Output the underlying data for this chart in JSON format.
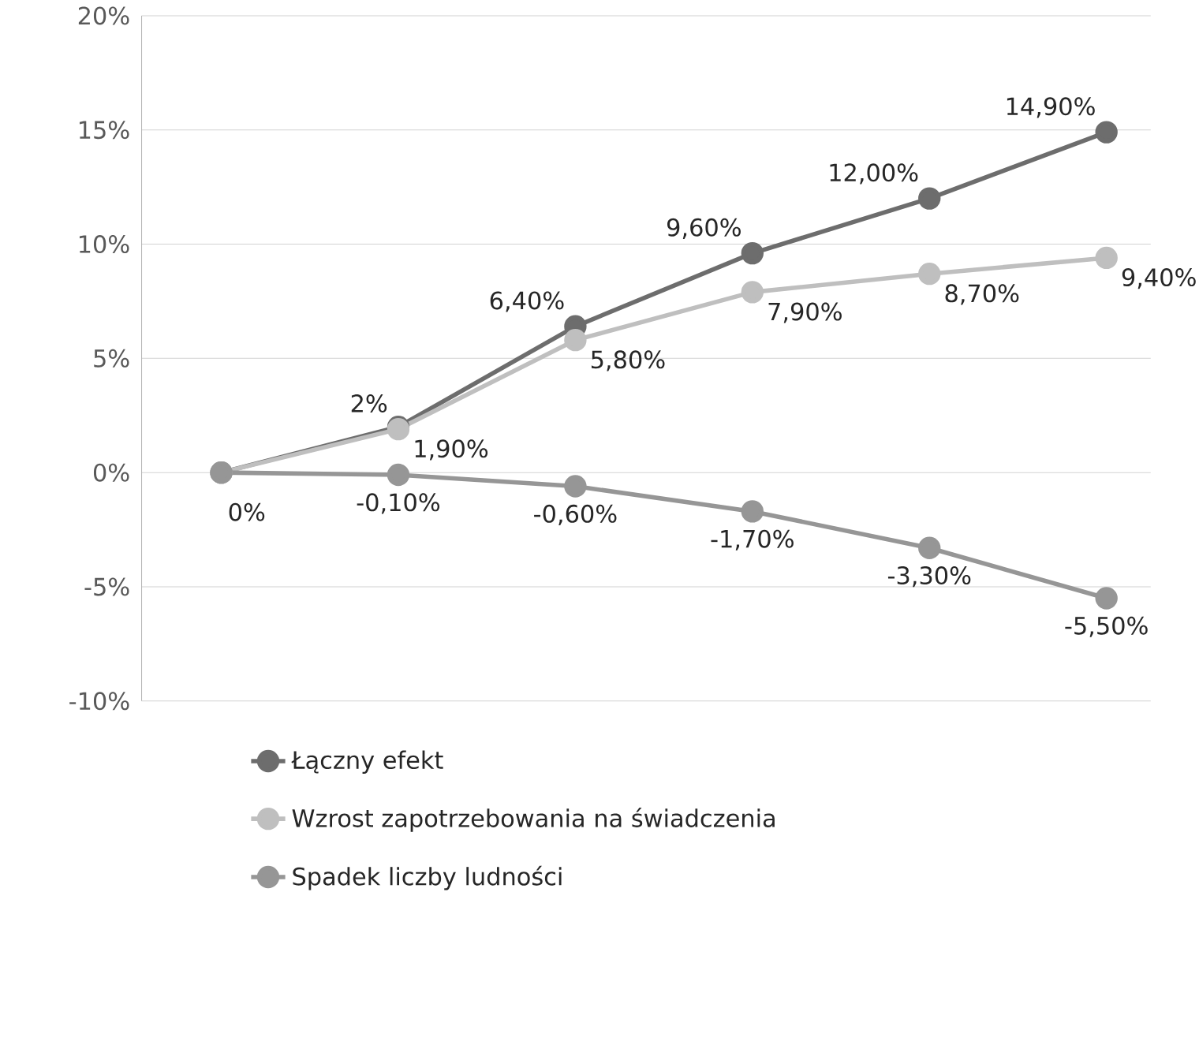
{
  "chart_data": {
    "type": "line",
    "categories": [
      null,
      null,
      null,
      null,
      null,
      null
    ],
    "series": [
      {
        "name": "Łączny efekt",
        "color": "#6d6d6d",
        "values": [
          0,
          2,
          6.4,
          9.6,
          12,
          14.9
        ],
        "value_labels": [
          "0%",
          "2%",
          "6,40%",
          "9,60%",
          "12,00%",
          "14,90%"
        ]
      },
      {
        "name": "Wzrost zapotrzebowania na świadczenia",
        "color": "#bfbfbf",
        "values": [
          0,
          1.9,
          5.8,
          7.9,
          8.7,
          9.4
        ],
        "value_labels": [
          null,
          "1,90%",
          "5,80%",
          "7,90%",
          "8,70%",
          "9,40%"
        ]
      },
      {
        "name": "Spadek liczby ludności",
        "color": "#969696",
        "values": [
          0,
          -0.1,
          -0.6,
          -1.7,
          -3.3,
          -5.5
        ],
        "value_labels": [
          null,
          "-0,10%",
          "-0,60%",
          "-1,70%",
          "-3,30%",
          "-5,50%"
        ]
      }
    ],
    "ylim": [
      -10,
      20
    ],
    "yticks": [
      {
        "value": -10,
        "label": "-10%"
      },
      {
        "value": -5,
        "label": "-5%"
      },
      {
        "value": 0,
        "label": "0%"
      },
      {
        "value": 5,
        "label": "5%"
      },
      {
        "value": 10,
        "label": "10%"
      },
      {
        "value": 15,
        "label": "15%"
      },
      {
        "value": 20,
        "label": "20%"
      }
    ],
    "grid": "y",
    "legend": "bottom",
    "marker": "circle",
    "line_style": "solid"
  }
}
